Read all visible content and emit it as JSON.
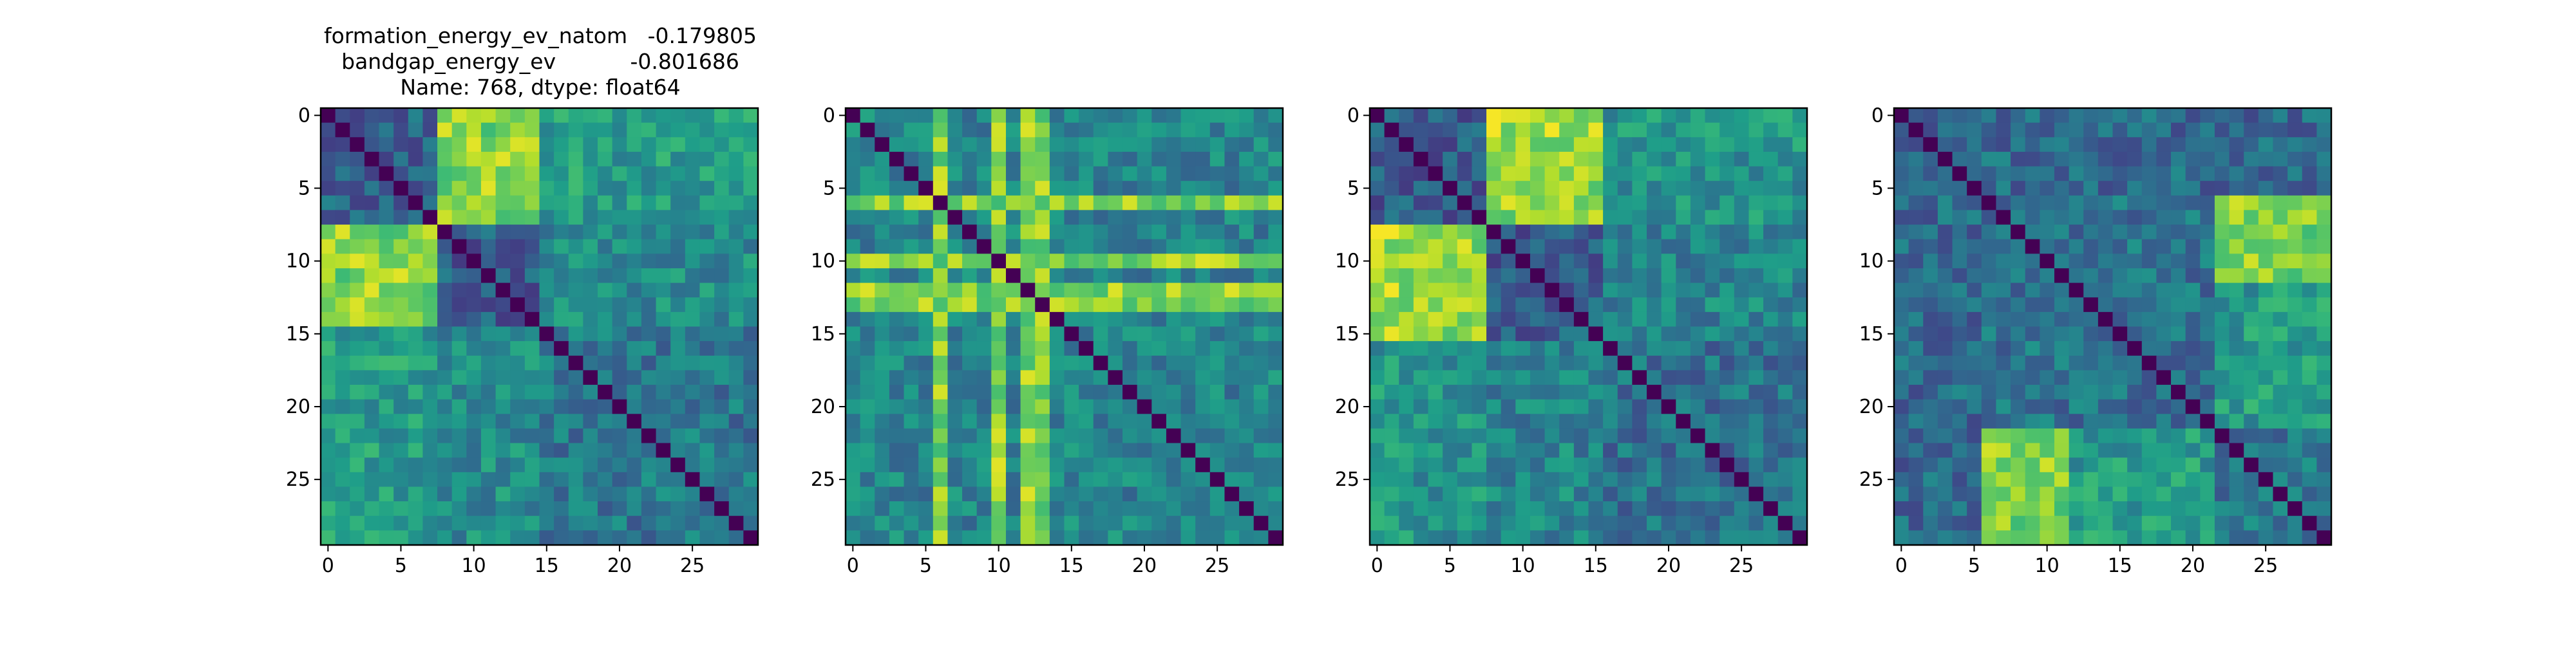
{
  "figure": {
    "title_lines": [
      "formation_energy_ev_natom   -0.179805",
      "bandgap_energy_ev           -0.801686",
      "Name: 768, dtype: float64"
    ]
  },
  "chart_data": [
    {
      "type": "heatmap",
      "colormap": "viridis",
      "size": 30,
      "xticks": [
        "0",
        "5",
        "10",
        "15",
        "20",
        "25"
      ],
      "yticks": [
        "0",
        "5",
        "10",
        "15",
        "20",
        "25"
      ],
      "diagonal": 0.0,
      "blocks": [
        {
          "rows": [
            0,
            7
          ],
          "cols": [
            8,
            14
          ],
          "value": 0.82
        },
        {
          "rows": [
            8,
            14
          ],
          "cols": [
            0,
            7
          ],
          "value": 0.82
        },
        {
          "rows": [
            0,
            7
          ],
          "cols": [
            0,
            7
          ],
          "value": 0.32
        },
        {
          "rows": [
            8,
            14
          ],
          "cols": [
            8,
            14
          ],
          "value": 0.3
        },
        {
          "rows": [
            15,
            29
          ],
          "cols": [
            0,
            7
          ],
          "value": 0.55
        },
        {
          "rows": [
            0,
            7
          ],
          "cols": [
            15,
            29
          ],
          "value": 0.55
        },
        {
          "rows": [
            15,
            29
          ],
          "cols": [
            8,
            14
          ],
          "value": 0.48
        },
        {
          "rows": [
            8,
            14
          ],
          "cols": [
            15,
            29
          ],
          "value": 0.48
        },
        {
          "rows": [
            15,
            29
          ],
          "cols": [
            15,
            29
          ],
          "value": 0.4
        }
      ]
    },
    {
      "type": "heatmap",
      "colormap": "viridis",
      "size": 30,
      "xticks": [
        "0",
        "5",
        "10",
        "15",
        "20",
        "25"
      ],
      "yticks": [
        "0",
        "5",
        "10",
        "15",
        "20",
        "25"
      ],
      "diagonal": 0.0,
      "base": 0.45,
      "bright_lines": [
        6,
        10,
        12,
        13
      ],
      "line_value": 0.82,
      "blocks": []
    },
    {
      "type": "heatmap",
      "colormap": "viridis",
      "size": 30,
      "xticks": [
        "0",
        "5",
        "10",
        "15",
        "20",
        "25"
      ],
      "yticks": [
        "0",
        "5",
        "10",
        "15",
        "20",
        "25"
      ],
      "diagonal": 0.0,
      "blocks": [
        {
          "rows": [
            0,
            7
          ],
          "cols": [
            8,
            15
          ],
          "value": 0.85
        },
        {
          "rows": [
            8,
            15
          ],
          "cols": [
            0,
            7
          ],
          "value": 0.85
        },
        {
          "rows": [
            0,
            7
          ],
          "cols": [
            0,
            7
          ],
          "value": 0.3
        },
        {
          "rows": [
            8,
            15
          ],
          "cols": [
            8,
            15
          ],
          "value": 0.3
        },
        {
          "rows": [
            16,
            29
          ],
          "cols": [
            0,
            7
          ],
          "value": 0.52
        },
        {
          "rows": [
            0,
            7
          ],
          "cols": [
            16,
            29
          ],
          "value": 0.52
        },
        {
          "rows": [
            16,
            29
          ],
          "cols": [
            8,
            15
          ],
          "value": 0.45
        },
        {
          "rows": [
            8,
            15
          ],
          "cols": [
            16,
            29
          ],
          "value": 0.45
        },
        {
          "rows": [
            16,
            29
          ],
          "cols": [
            16,
            29
          ],
          "value": 0.38
        }
      ]
    },
    {
      "type": "heatmap",
      "colormap": "viridis",
      "size": 30,
      "xticks": [
        "0",
        "5",
        "10",
        "15",
        "20",
        "25"
      ],
      "yticks": [
        "0",
        "5",
        "10",
        "15",
        "20",
        "25"
      ],
      "diagonal": 0.0,
      "blocks": [
        {
          "rows": [
            0,
            5
          ],
          "cols": [
            0,
            29
          ],
          "value": 0.35
        },
        {
          "rows": [
            6,
            29
          ],
          "cols": [
            0,
            5
          ],
          "value": 0.35
        },
        {
          "rows": [
            6,
            11
          ],
          "cols": [
            22,
            29
          ],
          "value": 0.82
        },
        {
          "rows": [
            22,
            29
          ],
          "cols": [
            6,
            11
          ],
          "value": 0.82
        },
        {
          "rows": [
            6,
            21
          ],
          "cols": [
            6,
            21
          ],
          "value": 0.38
        },
        {
          "rows": [
            22,
            29
          ],
          "cols": [
            22,
            29
          ],
          "value": 0.4
        },
        {
          "rows": [
            12,
            21
          ],
          "cols": [
            22,
            29
          ],
          "value": 0.55
        },
        {
          "rows": [
            22,
            29
          ],
          "cols": [
            12,
            21
          ],
          "value": 0.55
        }
      ]
    }
  ]
}
